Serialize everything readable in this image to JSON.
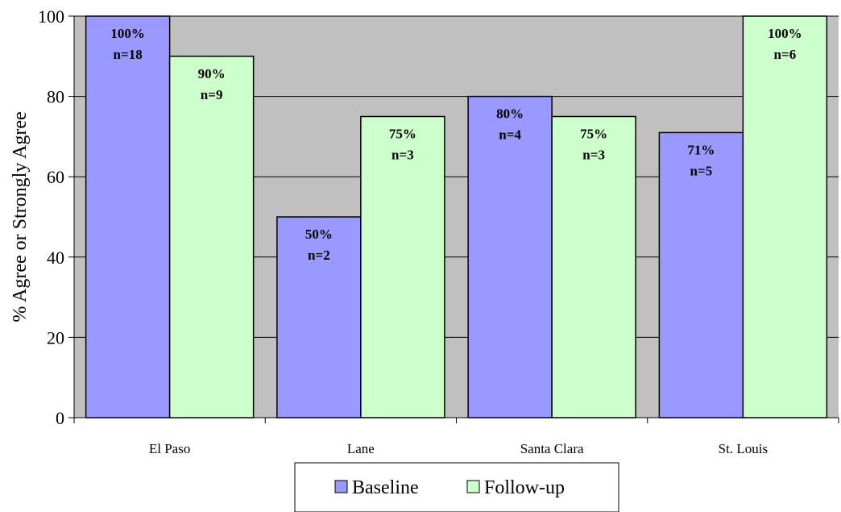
{
  "chart_data": {
    "type": "bar",
    "categories": [
      "El Paso",
      "Lane",
      "Santa Clara",
      "St. Louis"
    ],
    "series": [
      {
        "name": "Baseline",
        "color": "#9999ff",
        "values": [
          100,
          50,
          80,
          71
        ],
        "labels": [
          "100%",
          "50%",
          "80%",
          "71%"
        ],
        "n": [
          "n=18",
          "n=2",
          "n=4",
          "n=5"
        ]
      },
      {
        "name": "Follow-up",
        "color": "#ccffcc",
        "values": [
          90,
          75,
          75,
          100
        ],
        "labels": [
          "90%",
          "75%",
          "75%",
          "100%"
        ],
        "n": [
          "n=9",
          "n=3",
          "n=3",
          "n=6"
        ]
      }
    ],
    "ylabel": "% Agree or Strongly Agree",
    "ylim": [
      0,
      100
    ],
    "yticks": [
      "0",
      "20",
      "40",
      "60",
      "80",
      "100"
    ],
    "plot_background": "#c0c0c0",
    "grid": true,
    "legend_position": "bottom"
  }
}
